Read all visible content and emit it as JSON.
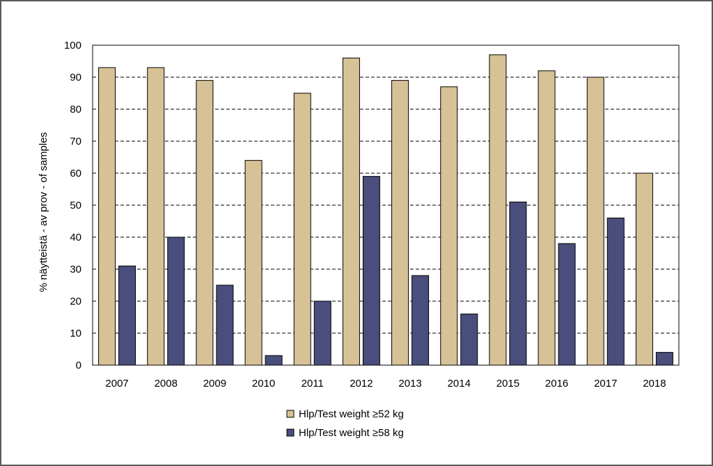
{
  "chart_data": {
    "type": "bar",
    "title": "",
    "xlabel": "",
    "ylabel": "% näytteistä - av prov - of samples",
    "categories": [
      "2007",
      "2008",
      "2009",
      "2010",
      "2011",
      "2012",
      "2013",
      "2014",
      "2015",
      "2016",
      "2017",
      "2018"
    ],
    "series": [
      {
        "name": "Hlp/Test weight ≥52 kg",
        "color": "#D7C196",
        "values": [
          93,
          93,
          89,
          64,
          85,
          96,
          89,
          87,
          97,
          92,
          90,
          60
        ]
      },
      {
        "name": "Hlp/Test weight ≥58 kg",
        "color": "#4A4E7C",
        "values": [
          31,
          40,
          25,
          3,
          20,
          59,
          28,
          16,
          51,
          38,
          46,
          4
        ]
      }
    ],
    "ylim": [
      0,
      100
    ],
    "yticks": [
      0,
      10,
      20,
      30,
      40,
      50,
      60,
      70,
      80,
      90,
      100
    ],
    "grid": "horizontal dashed",
    "legend_position": "bottom-center"
  }
}
